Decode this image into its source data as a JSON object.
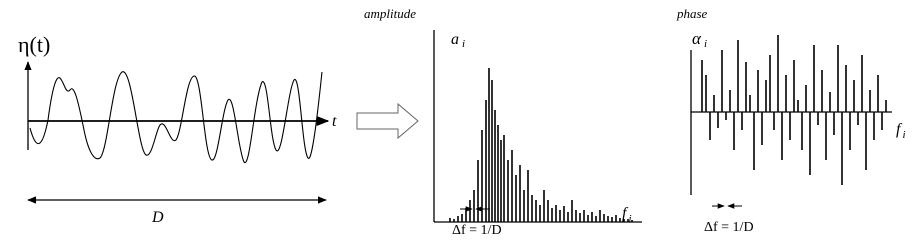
{
  "time_panel": {
    "ylabel": "η(t)",
    "xlabel": "t",
    "duration": "D"
  },
  "amplitude_panel": {
    "title": "amplitude",
    "ylabel": {
      "symbol": "a",
      "subscript": "i"
    },
    "xlabel": {
      "symbol": "f",
      "subscript": "i"
    },
    "spacing": "Δf = 1/D"
  },
  "phase_panel": {
    "title": "phase",
    "ylabel": {
      "symbol": "α",
      "subscript": "i"
    },
    "xlabel": {
      "symbol": "f",
      "subscript": "i"
    },
    "spacing": "Δf = 1/D"
  }
}
